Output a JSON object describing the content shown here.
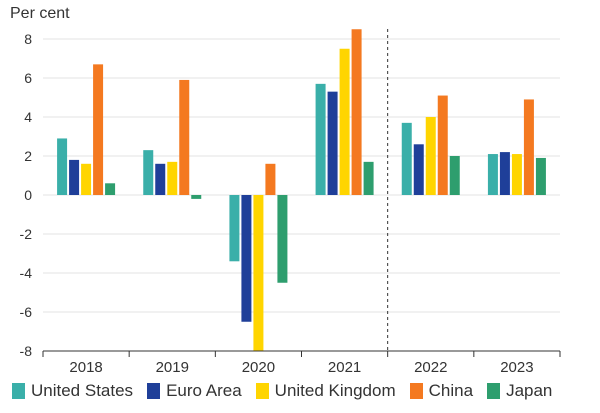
{
  "chart_data": {
    "type": "bar",
    "y_unit_label": "Per cent",
    "categories": [
      "2018",
      "2019",
      "2020",
      "2021",
      "2022",
      "2023"
    ],
    "ylim": [
      -8,
      8
    ],
    "yticks": [
      -8,
      -6,
      -4,
      -2,
      0,
      2,
      4,
      6,
      8
    ],
    "grid": true,
    "legend_position": "bottom",
    "forecast_divider_after": "2021",
    "series": [
      {
        "name": "United States",
        "color": "#3AAFA9",
        "values": [
          2.9,
          2.3,
          -3.4,
          5.7,
          3.7,
          2.1
        ]
      },
      {
        "name": "Euro Area",
        "color": "#1F3F99",
        "values": [
          1.8,
          1.6,
          -6.5,
          5.3,
          2.6,
          2.2
        ]
      },
      {
        "name": "United Kingdom",
        "color": "#FFD500",
        "values": [
          1.6,
          1.7,
          -8.0,
          7.5,
          4.0,
          2.1
        ]
      },
      {
        "name": "China",
        "color": "#F47920",
        "values": [
          6.7,
          5.9,
          1.6,
          8.5,
          5.1,
          4.9
        ]
      },
      {
        "name": "Japan",
        "color": "#2E9E6E",
        "values": [
          0.6,
          -0.2,
          -4.5,
          1.7,
          2.0,
          1.9
        ]
      }
    ]
  }
}
